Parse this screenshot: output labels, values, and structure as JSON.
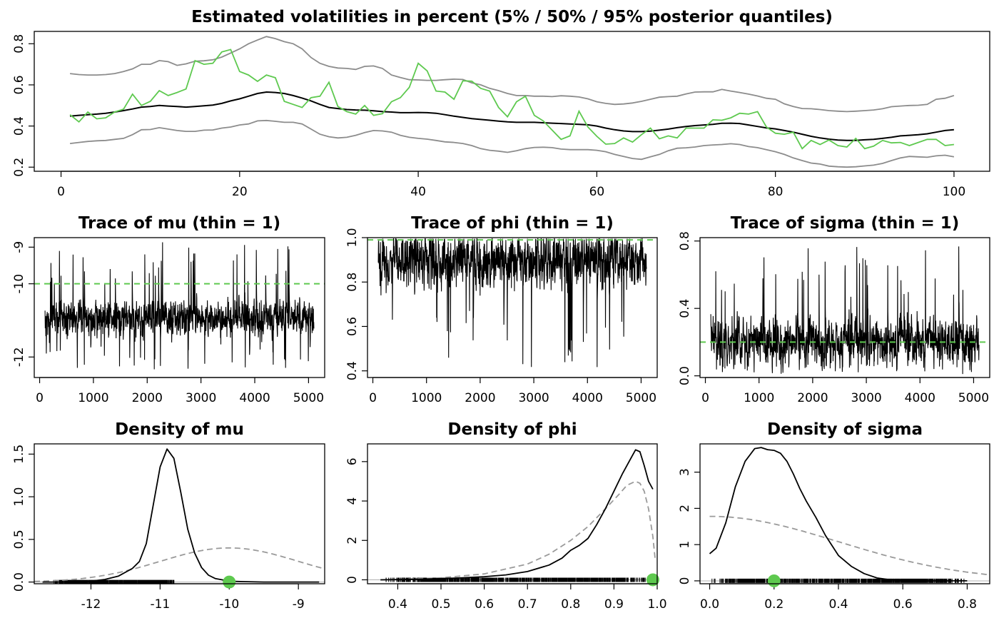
{
  "chart_data": [
    {
      "id": "vol",
      "type": "line",
      "title": "Estimated volatilities in percent (5% / 50% / 95% posterior quantiles)",
      "xlim": [
        -3,
        104
      ],
      "ylim": [
        0.18,
        0.86
      ],
      "xticks": [
        0,
        20,
        40,
        60,
        80,
        100
      ],
      "yticks": [
        0.2,
        0.4,
        0.6,
        0.8
      ],
      "colors": {
        "q05": "#8c8c8c",
        "q50": "#000000",
        "q95": "#8c8c8c",
        "true": "#5ec94f"
      },
      "series": [
        {
          "key": "q95",
          "color": "#8c8c8c",
          "x_start": 1,
          "x_step": 1,
          "values": [
            0.655,
            0.65,
            0.648,
            0.648,
            0.65,
            0.655,
            0.665,
            0.678,
            0.7,
            0.7,
            0.718,
            0.713,
            0.695,
            0.702,
            0.715,
            0.717,
            0.722,
            0.735,
            0.755,
            0.775,
            0.8,
            0.818,
            0.835,
            0.825,
            0.81,
            0.8,
            0.775,
            0.733,
            0.705,
            0.69,
            0.682,
            0.68,
            0.675,
            0.69,
            0.692,
            0.68,
            0.648,
            0.636,
            0.625,
            0.624,
            0.622,
            0.622,
            0.625,
            0.628,
            0.626,
            0.61,
            0.6,
            0.583,
            0.572,
            0.558,
            0.548,
            0.548,
            0.545,
            0.545,
            0.543,
            0.547,
            0.545,
            0.541,
            0.532,
            0.518,
            0.51,
            0.505,
            0.507,
            0.512,
            0.52,
            0.53,
            0.54,
            0.543,
            0.545,
            0.556,
            0.565,
            0.566,
            0.566,
            0.578,
            0.57,
            0.563,
            0.555,
            0.546,
            0.535,
            0.53,
            0.508,
            0.495,
            0.485,
            0.484,
            0.48,
            0.475,
            0.472,
            0.47,
            0.472,
            0.475,
            0.478,
            0.484,
            0.494,
            0.497,
            0.5,
            0.501,
            0.505,
            0.53,
            0.535,
            0.548
          ]
        },
        {
          "key": "q50",
          "color": "#000000",
          "x_start": 1,
          "x_step": 1,
          "values": [
            0.448,
            0.452,
            0.455,
            0.458,
            0.462,
            0.468,
            0.475,
            0.483,
            0.492,
            0.495,
            0.5,
            0.497,
            0.495,
            0.492,
            0.495,
            0.498,
            0.502,
            0.51,
            0.522,
            0.532,
            0.545,
            0.558,
            0.565,
            0.563,
            0.558,
            0.548,
            0.536,
            0.522,
            0.505,
            0.49,
            0.485,
            0.48,
            0.478,
            0.477,
            0.474,
            0.47,
            0.468,
            0.465,
            0.465,
            0.466,
            0.465,
            0.462,
            0.455,
            0.448,
            0.442,
            0.436,
            0.432,
            0.428,
            0.424,
            0.42,
            0.418,
            0.418,
            0.418,
            0.416,
            0.414,
            0.412,
            0.41,
            0.408,
            0.406,
            0.4,
            0.39,
            0.382,
            0.376,
            0.373,
            0.373,
            0.375,
            0.38,
            0.385,
            0.392,
            0.398,
            0.402,
            0.405,
            0.408,
            0.413,
            0.414,
            0.412,
            0.405,
            0.398,
            0.391,
            0.386,
            0.378,
            0.37,
            0.36,
            0.35,
            0.342,
            0.336,
            0.332,
            0.33,
            0.33,
            0.333,
            0.335,
            0.34,
            0.345,
            0.352,
            0.355,
            0.358,
            0.362,
            0.37,
            0.378,
            0.382
          ]
        },
        {
          "key": "q05",
          "color": "#8c8c8c",
          "x_start": 1,
          "x_step": 1,
          "values": [
            0.315,
            0.32,
            0.325,
            0.328,
            0.33,
            0.335,
            0.34,
            0.358,
            0.382,
            0.383,
            0.392,
            0.385,
            0.378,
            0.374,
            0.374,
            0.38,
            0.381,
            0.39,
            0.395,
            0.405,
            0.41,
            0.425,
            0.427,
            0.423,
            0.418,
            0.418,
            0.41,
            0.385,
            0.36,
            0.348,
            0.342,
            0.345,
            0.355,
            0.368,
            0.378,
            0.376,
            0.37,
            0.355,
            0.345,
            0.34,
            0.336,
            0.33,
            0.323,
            0.32,
            0.315,
            0.305,
            0.29,
            0.282,
            0.278,
            0.272,
            0.28,
            0.29,
            0.296,
            0.297,
            0.295,
            0.288,
            0.285,
            0.285,
            0.285,
            0.282,
            0.275,
            0.262,
            0.252,
            0.242,
            0.238,
            0.25,
            0.262,
            0.28,
            0.292,
            0.294,
            0.298,
            0.305,
            0.308,
            0.31,
            0.314,
            0.31,
            0.3,
            0.295,
            0.285,
            0.275,
            0.262,
            0.245,
            0.232,
            0.22,
            0.215,
            0.205,
            0.202,
            0.2,
            0.202,
            0.206,
            0.21,
            0.218,
            0.232,
            0.245,
            0.252,
            0.25,
            0.248,
            0.255,
            0.258,
            0.25
          ]
        },
        {
          "key": "true",
          "color": "#5ec94f",
          "x_start": 1,
          "x_step": 1,
          "values": [
            0.455,
            0.42,
            0.468,
            0.435,
            0.44,
            0.468,
            0.482,
            0.555,
            0.5,
            0.52,
            0.572,
            0.548,
            0.563,
            0.58,
            0.718,
            0.7,
            0.705,
            0.76,
            0.772,
            0.665,
            0.648,
            0.617,
            0.648,
            0.635,
            0.52,
            0.505,
            0.49,
            0.538,
            0.545,
            0.613,
            0.495,
            0.47,
            0.458,
            0.5,
            0.452,
            0.46,
            0.518,
            0.538,
            0.588,
            0.705,
            0.668,
            0.57,
            0.565,
            0.53,
            0.62,
            0.618,
            0.583,
            0.57,
            0.49,
            0.445,
            0.518,
            0.545,
            0.452,
            0.425,
            0.38,
            0.335,
            0.352,
            0.472,
            0.395,
            0.35,
            0.312,
            0.315,
            0.342,
            0.322,
            0.358,
            0.39,
            0.338,
            0.352,
            0.342,
            0.39,
            0.39,
            0.39,
            0.43,
            0.428,
            0.44,
            0.462,
            0.458,
            0.47,
            0.395,
            0.365,
            0.36,
            0.37,
            0.29,
            0.33,
            0.31,
            0.332,
            0.305,
            0.298,
            0.34,
            0.29,
            0.302,
            0.33,
            0.318,
            0.32,
            0.305,
            0.32,
            0.335,
            0.335,
            0.305,
            0.31
          ]
        }
      ]
    },
    {
      "id": "trace_mu",
      "type": "line",
      "title": "Trace of mu (thin = 1)",
      "xlim": [
        -100,
        5300
      ],
      "ylim": [
        -12.56,
        -8.74
      ],
      "xticks": [
        0,
        1000,
        2000,
        3000,
        4000,
        5000
      ],
      "yticks": [
        -12,
        -10,
        -9
      ],
      "x_range": [
        101,
        5100
      ],
      "center": -10.95,
      "spread": 0.28,
      "spike_min": -12.35,
      "spike_max": -8.85,
      "reference_line": -10,
      "reference_color": "#5ec94f"
    },
    {
      "id": "trace_phi",
      "type": "line",
      "title": "Trace of phi (thin = 1)",
      "xlim": [
        -100,
        5300
      ],
      "ylim": [
        0.37,
        1.0
      ],
      "xticks": [
        0,
        1000,
        2000,
        3000,
        4000,
        5000
      ],
      "yticks": [
        0.4,
        0.6,
        0.8,
        1.0
      ],
      "x_range": [
        101,
        5100
      ],
      "center": 0.9,
      "spread": 0.07,
      "spike_min": 0.41,
      "spike_max": 0.995,
      "reference_line": 0.99,
      "reference_color": "#5ec94f"
    },
    {
      "id": "trace_sigma",
      "type": "line",
      "title": "Trace of sigma (thin = 1)",
      "xlim": [
        -100,
        5300
      ],
      "ylim": [
        -0.01,
        0.82
      ],
      "xticks": [
        0,
        1000,
        2000,
        3000,
        4000,
        5000
      ],
      "yticks": [
        0.0,
        0.4,
        0.8
      ],
      "x_range": [
        101,
        5100
      ],
      "center": 0.2,
      "spread": 0.08,
      "spike_min": 0.01,
      "spike_max": 0.78,
      "reference_line": 0.2,
      "reference_color": "#5ec94f"
    },
    {
      "id": "dens_mu",
      "type": "line",
      "title": "Density of mu",
      "xlim": [
        -12.82,
        -8.62
      ],
      "ylim": [
        -0.02,
        1.62
      ],
      "xticks": [
        -12,
        -11,
        -10,
        -9
      ],
      "yticks": [
        0.0,
        0.5,
        1.0,
        1.5
      ],
      "posterior": {
        "x": [
          -12.7,
          -12.3,
          -12.0,
          -11.8,
          -11.6,
          -11.4,
          -11.3,
          -11.2,
          -11.1,
          -11.0,
          -10.9,
          -10.8,
          -10.7,
          -10.6,
          -10.5,
          -10.4,
          -10.3,
          -10.2,
          -10.0,
          -9.8,
          -9.5,
          -9.0,
          -8.7
        ],
        "y": [
          0.0,
          0.0,
          0.01,
          0.03,
          0.07,
          0.16,
          0.24,
          0.45,
          0.9,
          1.35,
          1.56,
          1.45,
          1.05,
          0.62,
          0.34,
          0.17,
          0.08,
          0.04,
          0.01,
          0.005,
          0.0,
          0.0,
          0.0
        ]
      },
      "prior": {
        "type": "normal",
        "mean": -10,
        "sd": 1,
        "scale": 0.4
      },
      "rug": [
        -12.55,
        -10.75
      ],
      "true_value": -10,
      "true_color": "#5ec94f"
    },
    {
      "id": "dens_phi",
      "type": "line",
      "title": "Density of phi",
      "xlim": [
        0.33,
        1.0
      ],
      "ylim": [
        -0.2,
        6.9
      ],
      "xticks": [
        0.4,
        0.5,
        0.6,
        0.7,
        0.8,
        0.9,
        1.0
      ],
      "yticks": [
        0,
        2,
        4,
        6
      ],
      "posterior": {
        "x": [
          0.36,
          0.4,
          0.45,
          0.5,
          0.55,
          0.6,
          0.65,
          0.7,
          0.75,
          0.78,
          0.8,
          0.82,
          0.84,
          0.86,
          0.88,
          0.9,
          0.92,
          0.94,
          0.95,
          0.96,
          0.97,
          0.98,
          0.99
        ],
        "y": [
          0.0,
          0.01,
          0.03,
          0.06,
          0.1,
          0.16,
          0.25,
          0.42,
          0.75,
          1.1,
          1.5,
          1.75,
          2.1,
          2.8,
          3.6,
          4.5,
          5.4,
          6.2,
          6.6,
          6.5,
          5.8,
          5.0,
          4.6
        ]
      },
      "prior": {
        "x": [
          0.36,
          0.4,
          0.5,
          0.6,
          0.7,
          0.75,
          0.8,
          0.84,
          0.88,
          0.91,
          0.93,
          0.95,
          0.96,
          0.97,
          0.98,
          0.99,
          0.995
        ],
        "y": [
          0.0,
          0.02,
          0.1,
          0.3,
          0.8,
          1.3,
          2.0,
          2.7,
          3.6,
          4.3,
          4.8,
          5.0,
          4.9,
          4.5,
          3.6,
          2.2,
          1.1
        ]
      },
      "rug": [
        0.36,
        0.998
      ],
      "true_value": 0.99,
      "true_color": "#5ec94f"
    },
    {
      "id": "dens_sigma",
      "type": "line",
      "title": "Density of sigma",
      "xlim": [
        -0.03,
        0.87
      ],
      "ylim": [
        -0.08,
        3.78
      ],
      "xticks": [
        0.0,
        0.2,
        0.4,
        0.6,
        0.8
      ],
      "yticks": [
        0,
        1,
        2,
        3
      ],
      "posterior": {
        "x": [
          0.0,
          0.02,
          0.05,
          0.08,
          0.11,
          0.14,
          0.16,
          0.18,
          0.2,
          0.22,
          0.24,
          0.26,
          0.28,
          0.3,
          0.33,
          0.36,
          0.4,
          0.44,
          0.48,
          0.52,
          0.56,
          0.6,
          0.65,
          0.7,
          0.75,
          0.8
        ],
        "y": [
          0.75,
          0.9,
          1.6,
          2.6,
          3.3,
          3.65,
          3.68,
          3.62,
          3.6,
          3.52,
          3.3,
          2.95,
          2.55,
          2.2,
          1.75,
          1.25,
          0.7,
          0.4,
          0.2,
          0.08,
          0.03,
          0.01,
          0.0,
          0.0,
          0.0,
          0.0
        ]
      },
      "prior": {
        "type": "halfnormal",
        "sd": 0.4,
        "scale": 1.78
      },
      "rug": [
        0.0,
        0.8
      ],
      "true_value": 0.2,
      "true_color": "#5ec94f"
    }
  ]
}
